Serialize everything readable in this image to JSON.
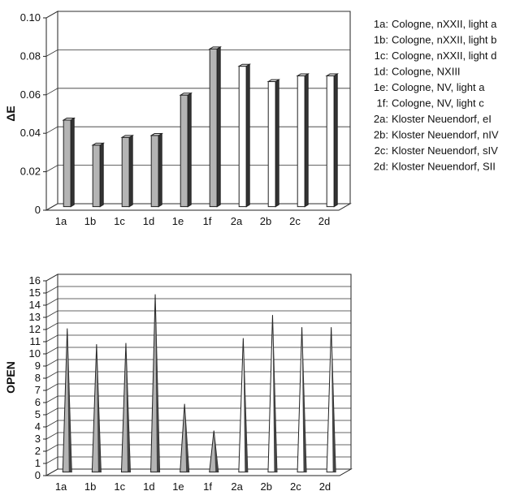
{
  "chart_data": [
    {
      "type": "bar",
      "ylabel": "ΔE",
      "ylim": [
        0,
        0.1
      ],
      "yticks": [
        "0",
        "0.02",
        "0.04",
        "0.06",
        "0.08",
        "0.10"
      ],
      "categories": [
        "1a",
        "1b",
        "1c",
        "1d",
        "1e",
        "1f",
        "2a",
        "2b",
        "2c",
        "2d"
      ],
      "values": [
        0.045,
        0.032,
        0.036,
        0.037,
        0.058,
        0.082,
        0.073,
        0.065,
        0.068,
        0.068
      ],
      "bar_colors": [
        "#b4b4b4",
        "#b4b4b4",
        "#b4b4b4",
        "#b4b4b4",
        "#b4b4b4",
        "#b4b4b4",
        "#ffffff",
        "#ffffff",
        "#ffffff",
        "#ffffff"
      ],
      "grid": true,
      "legend_placement": "right",
      "legend": [
        {
          "key": "1a:",
          "text": "Cologne, nXXII, light a"
        },
        {
          "key": "1b:",
          "text": "Cologne, nXXII, light b"
        },
        {
          "key": "1c:",
          "text": "Cologne, nXXII, light d"
        },
        {
          "key": "1d:",
          "text": "Cologne, NXIII"
        },
        {
          "key": "1e:",
          "text": "Cologne, NV, light a"
        },
        {
          "key": "1f:",
          "text": "Cologne, NV, light c"
        },
        {
          "key": "2a:",
          "text": "Kloster Neuendorf, eI"
        },
        {
          "key": "2b:",
          "text": "Kloster Neuendorf, nIV"
        },
        {
          "key": "2c:",
          "text": "Kloster Neuendorf, sIV"
        },
        {
          "key": "2d:",
          "text": "Kloster Neuendorf, SII"
        }
      ]
    },
    {
      "type": "bar",
      "ylabel": "OPEN",
      "ylim": [
        0,
        16
      ],
      "yticks": [
        "0",
        "1",
        "2",
        "3",
        "4",
        "5",
        "6",
        "7",
        "8",
        "9",
        "10",
        "11",
        "12",
        "13",
        "14",
        "15",
        "16"
      ],
      "categories": [
        "1a",
        "1b",
        "1c",
        "1d",
        "1e",
        "1f",
        "2a",
        "2b",
        "2c",
        "2d"
      ],
      "values": [
        11.8,
        10.5,
        10.6,
        14.6,
        5.6,
        3.4,
        11.0,
        12.9,
        11.9,
        11.9
      ],
      "bar_colors": [
        "#b4b4b4",
        "#b4b4b4",
        "#b4b4b4",
        "#b4b4b4",
        "#b4b4b4",
        "#b4b4b4",
        "#ffffff",
        "#ffffff",
        "#ffffff",
        "#ffffff"
      ],
      "grid": true
    }
  ]
}
